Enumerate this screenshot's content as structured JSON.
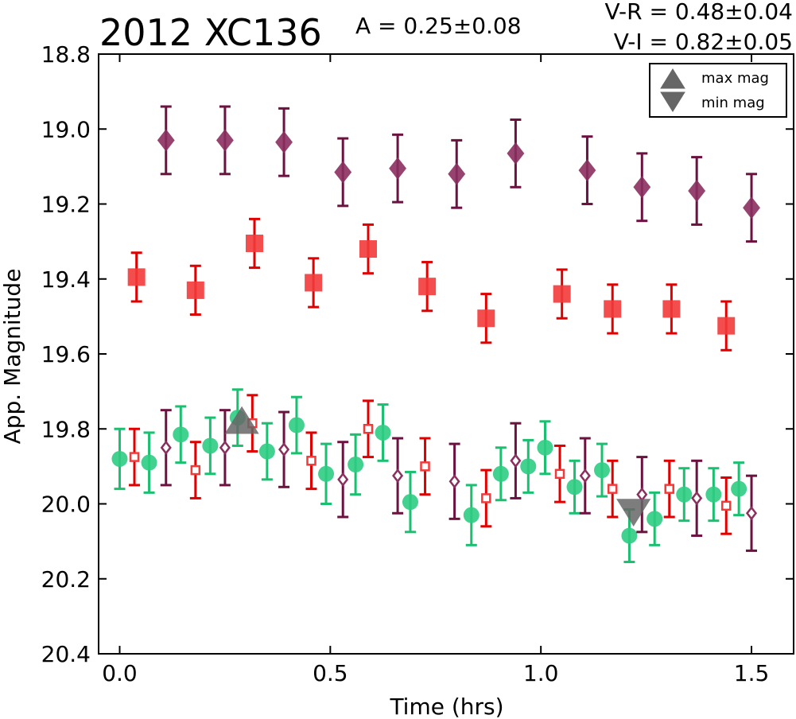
{
  "chart_data": {
    "type": "scatter",
    "title": "2012 XC136",
    "annotations": {
      "amplitude": "A  = 0.25±0.08",
      "v_minus_r": "V-R = 0.48±0.04",
      "v_minus_i": "V-I  = 0.82±0.05"
    },
    "xlabel": "Time (hrs)",
    "ylabel": "App. Magnitude",
    "xlim": [
      -0.05,
      1.6
    ],
    "ylim": [
      20.4,
      18.8
    ],
    "y_inverted": true,
    "x_ticks": [
      0.0,
      0.5,
      1.0,
      1.5
    ],
    "x_tick_labels": [
      "0.0",
      "0.5",
      "1.0",
      "1.5"
    ],
    "y_ticks": [
      18.8,
      19.0,
      19.2,
      19.4,
      19.6,
      19.8,
      20.0,
      20.2,
      20.4
    ],
    "y_tick_labels": [
      "18.8",
      "19.0",
      "19.2",
      "19.4",
      "19.6",
      "19.8",
      "20.0",
      "20.2",
      "20.4"
    ],
    "grid": false,
    "legend_position": "top-right",
    "legend": [
      {
        "label": "max mag",
        "marker": "triangle-up",
        "color": "#666666"
      },
      {
        "label": "min mag",
        "marker": "triangle-down",
        "color": "#666666"
      }
    ],
    "markers": [
      {
        "kind": "max",
        "x": 0.29,
        "y": 19.78
      },
      {
        "kind": "min",
        "x": 1.22,
        "y": 20.02
      }
    ],
    "series": [
      {
        "marker": "diamond",
        "filled": true,
        "color": "#8B2F5F",
        "err_color": "#6B1240",
        "points": [
          {
            "x": 0.11,
            "y": 19.03,
            "err": 0.09
          },
          {
            "x": 0.25,
            "y": 19.03,
            "err": 0.09
          },
          {
            "x": 0.39,
            "y": 19.035,
            "err": 0.09
          },
          {
            "x": 0.53,
            "y": 19.115,
            "err": 0.09
          },
          {
            "x": 0.66,
            "y": 19.105,
            "err": 0.09
          },
          {
            "x": 0.8,
            "y": 19.12,
            "err": 0.09
          },
          {
            "x": 0.94,
            "y": 19.065,
            "err": 0.09
          },
          {
            "x": 1.11,
            "y": 19.11,
            "err": 0.09
          },
          {
            "x": 1.24,
            "y": 19.155,
            "err": 0.09
          },
          {
            "x": 1.37,
            "y": 19.165,
            "err": 0.09
          },
          {
            "x": 1.5,
            "y": 19.21,
            "err": 0.09
          }
        ]
      },
      {
        "marker": "square",
        "filled": true,
        "color": "#F23A3A",
        "err_color": "#E00000",
        "points": [
          {
            "x": 0.04,
            "y": 19.395,
            "err": 0.065
          },
          {
            "x": 0.18,
            "y": 19.43,
            "err": 0.065
          },
          {
            "x": 0.32,
            "y": 19.305,
            "err": 0.065
          },
          {
            "x": 0.46,
            "y": 19.41,
            "err": 0.065
          },
          {
            "x": 0.59,
            "y": 19.32,
            "err": 0.065
          },
          {
            "x": 0.73,
            "y": 19.42,
            "err": 0.065
          },
          {
            "x": 0.87,
            "y": 19.505,
            "err": 0.065
          },
          {
            "x": 1.05,
            "y": 19.44,
            "err": 0.065
          },
          {
            "x": 1.17,
            "y": 19.48,
            "err": 0.065
          },
          {
            "x": 1.31,
            "y": 19.48,
            "err": 0.065
          },
          {
            "x": 1.44,
            "y": 19.525,
            "err": 0.065
          }
        ]
      },
      {
        "marker": "circle",
        "filled": true,
        "color": "#2ECC82",
        "err_color": "#1ABF70",
        "points": [
          {
            "x": 0.0,
            "y": 19.88,
            "err": 0.08
          },
          {
            "x": 0.07,
            "y": 19.89,
            "err": 0.08
          },
          {
            "x": 0.145,
            "y": 19.815,
            "err": 0.075
          },
          {
            "x": 0.215,
            "y": 19.845,
            "err": 0.075
          },
          {
            "x": 0.28,
            "y": 19.77,
            "err": 0.075
          },
          {
            "x": 0.35,
            "y": 19.86,
            "err": 0.075
          },
          {
            "x": 0.42,
            "y": 19.79,
            "err": 0.075
          },
          {
            "x": 0.49,
            "y": 19.92,
            "err": 0.08
          },
          {
            "x": 0.56,
            "y": 19.895,
            "err": 0.08
          },
          {
            "x": 0.625,
            "y": 19.81,
            "err": 0.075
          },
          {
            "x": 0.69,
            "y": 19.995,
            "err": 0.08
          },
          {
            "x": 0.835,
            "y": 20.03,
            "err": 0.08
          },
          {
            "x": 0.905,
            "y": 19.92,
            "err": 0.07
          },
          {
            "x": 0.97,
            "y": 19.9,
            "err": 0.07
          },
          {
            "x": 1.01,
            "y": 19.85,
            "err": 0.07
          },
          {
            "x": 1.08,
            "y": 19.955,
            "err": 0.07
          },
          {
            "x": 1.145,
            "y": 19.91,
            "err": 0.07
          },
          {
            "x": 1.21,
            "y": 20.085,
            "err": 0.07
          },
          {
            "x": 1.27,
            "y": 20.04,
            "err": 0.07
          },
          {
            "x": 1.34,
            "y": 19.975,
            "err": 0.07
          },
          {
            "x": 1.41,
            "y": 19.975,
            "err": 0.07
          },
          {
            "x": 1.47,
            "y": 19.96,
            "err": 0.07
          }
        ]
      },
      {
        "marker": "square",
        "filled": false,
        "color": "#F23A3A",
        "err_color": "#E00000",
        "points": [
          {
            "x": 0.035,
            "y": 19.875,
            "err": 0.075
          },
          {
            "x": 0.18,
            "y": 19.91,
            "err": 0.075
          },
          {
            "x": 0.315,
            "y": 19.785,
            "err": 0.075
          },
          {
            "x": 0.455,
            "y": 19.885,
            "err": 0.075
          },
          {
            "x": 0.59,
            "y": 19.8,
            "err": 0.075
          },
          {
            "x": 0.725,
            "y": 19.9,
            "err": 0.075
          },
          {
            "x": 0.87,
            "y": 19.985,
            "err": 0.075
          },
          {
            "x": 1.045,
            "y": 19.92,
            "err": 0.075
          },
          {
            "x": 1.17,
            "y": 19.96,
            "err": 0.075
          },
          {
            "x": 1.305,
            "y": 19.96,
            "err": 0.075
          },
          {
            "x": 1.44,
            "y": 20.005,
            "err": 0.075
          }
        ]
      },
      {
        "marker": "diamond",
        "filled": false,
        "color": "#8B2F5F",
        "err_color": "#6B1240",
        "points": [
          {
            "x": 0.11,
            "y": 19.85,
            "err": 0.1
          },
          {
            "x": 0.25,
            "y": 19.85,
            "err": 0.1
          },
          {
            "x": 0.39,
            "y": 19.855,
            "err": 0.1
          },
          {
            "x": 0.53,
            "y": 19.935,
            "err": 0.1
          },
          {
            "x": 0.66,
            "y": 19.925,
            "err": 0.1
          },
          {
            "x": 0.795,
            "y": 19.94,
            "err": 0.1
          },
          {
            "x": 0.94,
            "y": 19.885,
            "err": 0.1
          },
          {
            "x": 1.105,
            "y": 19.925,
            "err": 0.1
          },
          {
            "x": 1.24,
            "y": 19.975,
            "err": 0.1
          },
          {
            "x": 1.37,
            "y": 19.985,
            "err": 0.1
          },
          {
            "x": 1.5,
            "y": 20.025,
            "err": 0.1
          }
        ]
      }
    ]
  }
}
